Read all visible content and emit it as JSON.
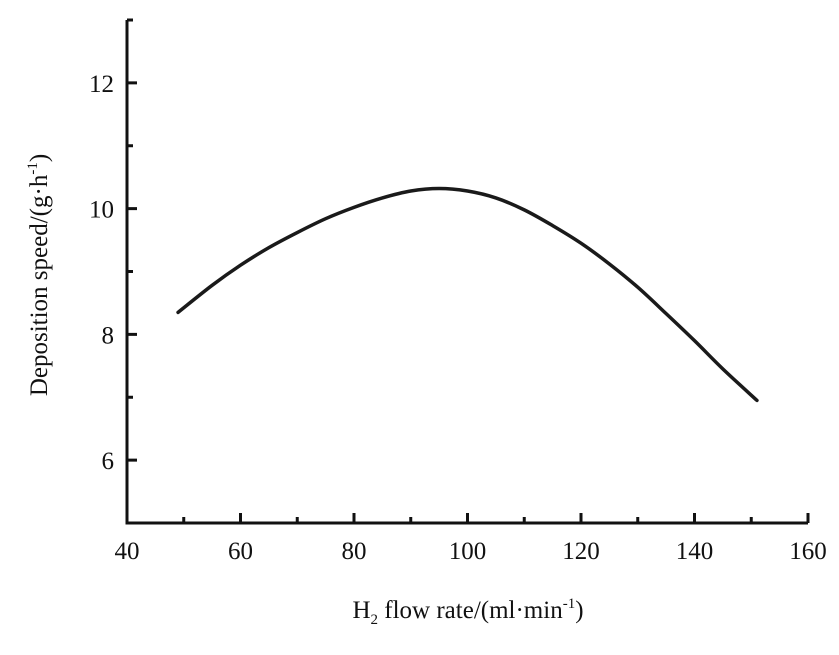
{
  "chart_data": {
    "type": "line",
    "title": "",
    "xlabel": {
      "main": "H",
      "sub": "2",
      "rest": " flow rate/(ml·min",
      "sup": "-1",
      "close": ")"
    },
    "ylabel": {
      "main": "Deposition speed/(g·h",
      "sup": "-1",
      "close": ")"
    },
    "xlim": [
      40,
      160
    ],
    "ylim": [
      5,
      13
    ],
    "x_ticks": [
      40,
      60,
      80,
      100,
      120,
      140,
      160
    ],
    "y_ticks": [
      6,
      8,
      10,
      12
    ],
    "grid": false,
    "legend": "none",
    "line_color": "#1a1a1a",
    "series": [
      {
        "x": [
          49,
          55,
          60,
          65,
          70,
          75,
          80,
          85,
          90,
          95,
          100,
          105,
          110,
          115,
          120,
          125,
          130,
          135,
          140,
          145,
          151
        ],
        "values": [
          8.35,
          8.78,
          9.1,
          9.38,
          9.62,
          9.84,
          10.02,
          10.17,
          10.28,
          10.32,
          10.28,
          10.17,
          9.98,
          9.73,
          9.45,
          9.12,
          8.75,
          8.33,
          7.9,
          7.45,
          6.95
        ]
      }
    ]
  }
}
